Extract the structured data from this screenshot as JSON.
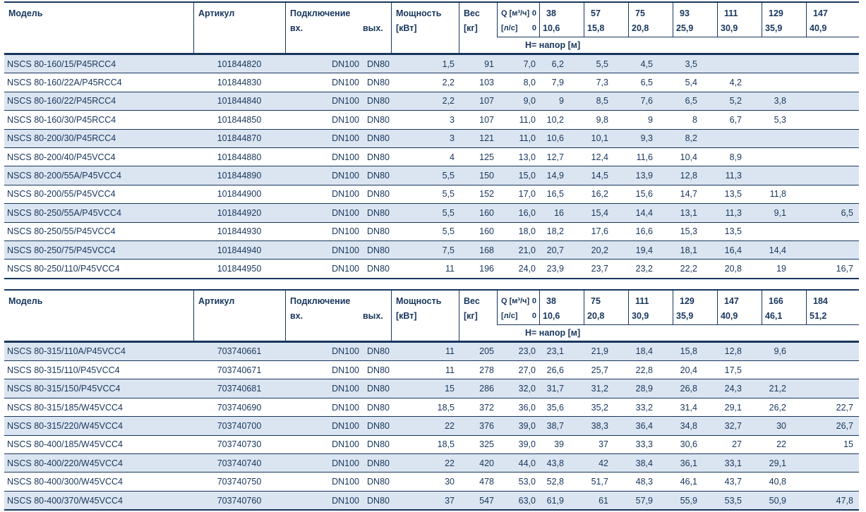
{
  "page": {
    "text_color": "#17365d",
    "stripe_color": "#dbe5f1",
    "border_color": "#17365d",
    "background": "#ffffff"
  },
  "tables": [
    {
      "header": {
        "model": "Модель",
        "article": "Артикул",
        "connection": "Подключение",
        "inlet": "вх.",
        "outlet": "вых.",
        "power_line1": "Мощность",
        "power_line2": "[кВт]",
        "weight_line1": "Вес",
        "weight_line2": "[кг]",
        "q_line1": "Q [м³/ч]",
        "q_line1_zero": "0",
        "q_line2": "[л/с]",
        "q_line2_zero": "0",
        "head_band": "H= напор [м]",
        "flows_m3h": [
          "38",
          "57",
          "75",
          "93",
          "111",
          "129",
          "147"
        ],
        "flows_ls": [
          "10,6",
          "15,8",
          "20,8",
          "25,9",
          "30,9",
          "35,9",
          "40,9"
        ]
      },
      "rows": [
        {
          "model": "NSCS 80-160/15/P45RCC4",
          "article": "101844820",
          "inlet": "DN100",
          "outlet": "DN80",
          "power": "1,5",
          "weight": "91",
          "q0": "7,0",
          "heads": [
            "6,2",
            "5,5",
            "4,5",
            "3,5",
            "",
            "",
            ""
          ]
        },
        {
          "model": "NSCS 80-160/22A/P45RCC4",
          "article": "101844830",
          "inlet": "DN100",
          "outlet": "DN80",
          "power": "2,2",
          "weight": "103",
          "q0": "8,0",
          "heads": [
            "7,9",
            "7,3",
            "6,5",
            "5,4",
            "4,2",
            "",
            ""
          ]
        },
        {
          "model": "NSCS 80-160/22/P45RCC4",
          "article": "101844840",
          "inlet": "DN100",
          "outlet": "DN80",
          "power": "2,2",
          "weight": "107",
          "q0": "9,0",
          "heads": [
            "9",
            "8,5",
            "7,6",
            "6,5",
            "5,2",
            "3,8",
            ""
          ]
        },
        {
          "model": "NSCS 80-160/30/P45RCC4",
          "article": "101844850",
          "inlet": "DN100",
          "outlet": "DN80",
          "power": "3",
          "weight": "107",
          "q0": "11,0",
          "heads": [
            "10,2",
            "9,8",
            "9",
            "8",
            "6,7",
            "5,3",
            ""
          ]
        },
        {
          "model": "NSCS 80-200/30/P45RCC4",
          "article": "101844870",
          "inlet": "DN100",
          "outlet": "DN80",
          "power": "3",
          "weight": "121",
          "q0": "11,0",
          "heads": [
            "10,6",
            "10,1",
            "9,3",
            "8,2",
            "",
            "",
            ""
          ]
        },
        {
          "model": "NSCS 80-200/40/P45VCC4",
          "article": "101844880",
          "inlet": "DN100",
          "outlet": "DN80",
          "power": "4",
          "weight": "125",
          "q0": "13,0",
          "heads": [
            "12,7",
            "12,4",
            "11,6",
            "10,4",
            "8,9",
            "",
            ""
          ]
        },
        {
          "model": "NSCS 80-200/55A/P45VCC4",
          "article": "101844890",
          "inlet": "DN100",
          "outlet": "DN80",
          "power": "5,5",
          "weight": "150",
          "q0": "15,0",
          "heads": [
            "14,9",
            "14,5",
            "13,9",
            "12,8",
            "11,3",
            "",
            ""
          ]
        },
        {
          "model": "NSCS 80-200/55/P45VCC4",
          "article": "101844900",
          "inlet": "DN100",
          "outlet": "DN80",
          "power": "5,5",
          "weight": "152",
          "q0": "17,0",
          "heads": [
            "16,5",
            "16,2",
            "15,6",
            "14,7",
            "13,5",
            "11,8",
            ""
          ]
        },
        {
          "model": "NSCS 80-250/55A/P45VCC4",
          "article": "101844920",
          "inlet": "DN100",
          "outlet": "DN80",
          "power": "5,5",
          "weight": "160",
          "q0": "16,0",
          "heads": [
            "16",
            "15,4",
            "14,4",
            "13,1",
            "11,3",
            "9,1",
            "6,5"
          ]
        },
        {
          "model": "NSCS 80-250/55/P45VCC4",
          "article": "101844930",
          "inlet": "DN100",
          "outlet": "DN80",
          "power": "5,5",
          "weight": "160",
          "q0": "18,0",
          "heads": [
            "18,2",
            "17,6",
            "16,6",
            "15,3",
            "13,5",
            "",
            ""
          ]
        },
        {
          "model": "NSCS 80-250/75/P45VCC4",
          "article": "101844940",
          "inlet": "DN100",
          "outlet": "DN80",
          "power": "7,5",
          "weight": "168",
          "q0": "21,0",
          "heads": [
            "20,7",
            "20,2",
            "19,4",
            "18,1",
            "16,4",
            "14,4",
            ""
          ]
        },
        {
          "model": "NSCS 80-250/110/P45VCC4",
          "article": "101844950",
          "inlet": "DN100",
          "outlet": "DN80",
          "power": "11",
          "weight": "196",
          "q0": "24,0",
          "heads": [
            "23,9",
            "23,7",
            "23,2",
            "22,2",
            "20,8",
            "19",
            "16,7"
          ]
        }
      ]
    },
    {
      "header": {
        "model": "Модель",
        "article": "Артикул",
        "connection": "Подключение",
        "inlet": "вх.",
        "outlet": "вых.",
        "power_line1": "Мощность",
        "power_line2": "[кВт]",
        "weight_line1": "Вес",
        "weight_line2": "[кг]",
        "q_line1": "Q [м³/ч]",
        "q_line1_zero": "0",
        "q_line2": "[л/с]",
        "q_line2_zero": "0",
        "head_band": "H= напор [м]",
        "flows_m3h": [
          "38",
          "75",
          "111",
          "129",
          "147",
          "166",
          "184"
        ],
        "flows_ls": [
          "10,6",
          "20,8",
          "30,9",
          "35,9",
          "40,9",
          "46,1",
          "51,2"
        ]
      },
      "rows": [
        {
          "model": "NSCS 80-315/110A/P45VCC4",
          "article": "703740661",
          "inlet": "DN100",
          "outlet": "DN80",
          "power": "11",
          "weight": "205",
          "q0": "23,0",
          "heads": [
            "23,1",
            "21,9",
            "18,4",
            "15,8",
            "12,8",
            "9,6",
            ""
          ]
        },
        {
          "model": "NSCS 80-315/110/P45VCC4",
          "article": "703740671",
          "inlet": "DN100",
          "outlet": "DN80",
          "power": "11",
          "weight": "278",
          "q0": "27,0",
          "heads": [
            "26,6",
            "25,7",
            "22,8",
            "20,4",
            "17,5",
            "",
            ""
          ]
        },
        {
          "model": "NSCS 80-315/150/P45VCC4",
          "article": "703740681",
          "inlet": "DN100",
          "outlet": "DN80",
          "power": "15",
          "weight": "286",
          "q0": "32,0",
          "heads": [
            "31,7",
            "31,2",
            "28,9",
            "26,8",
            "24,3",
            "21,2",
            ""
          ]
        },
        {
          "model": "NSCS 80-315/185/W45VCC4",
          "article": "703740690",
          "inlet": "DN100",
          "outlet": "DN80",
          "power": "18,5",
          "weight": "372",
          "q0": "36,0",
          "heads": [
            "35,6",
            "35,2",
            "33,2",
            "31,4",
            "29,1",
            "26,2",
            "22,7"
          ]
        },
        {
          "model": "NSCS 80-315/220/W45VCC4",
          "article": "703740700",
          "inlet": "DN100",
          "outlet": "DN80",
          "power": "22",
          "weight": "376",
          "q0": "39,0",
          "heads": [
            "38,7",
            "38,3",
            "36,4",
            "34,8",
            "32,7",
            "30",
            "26,7"
          ]
        },
        {
          "model": "NSCS 80-400/185/W45VCC4",
          "article": "703740730",
          "inlet": "DN100",
          "outlet": "DN80",
          "power": "18,5",
          "weight": "325",
          "q0": "39,0",
          "heads": [
            "39",
            "37",
            "33,3",
            "30,6",
            "27",
            "22",
            "15"
          ]
        },
        {
          "model": "NSCS 80-400/220/W45VCC4",
          "article": "703740740",
          "inlet": "DN100",
          "outlet": "DN80",
          "power": "22",
          "weight": "420",
          "q0": "44,0",
          "heads": [
            "43,8",
            "42",
            "38,4",
            "36,1",
            "33,1",
            "29,1",
            ""
          ]
        },
        {
          "model": "NSCS 80-400/300/W45VCC4",
          "article": "703740750",
          "inlet": "DN100",
          "outlet": "DN80",
          "power": "30",
          "weight": "478",
          "q0": "53,0",
          "heads": [
            "52,8",
            "51,7",
            "48,3",
            "46,1",
            "43,7",
            "40,8",
            ""
          ]
        },
        {
          "model": "NSCS 80-400/370/W45VCC4",
          "article": "703740760",
          "inlet": "DN100",
          "outlet": "DN80",
          "power": "37",
          "weight": "547",
          "q0": "63,0",
          "heads": [
            "61,9",
            "61",
            "57,9",
            "55,9",
            "53,5",
            "50,9",
            "47,8"
          ]
        }
      ]
    }
  ]
}
